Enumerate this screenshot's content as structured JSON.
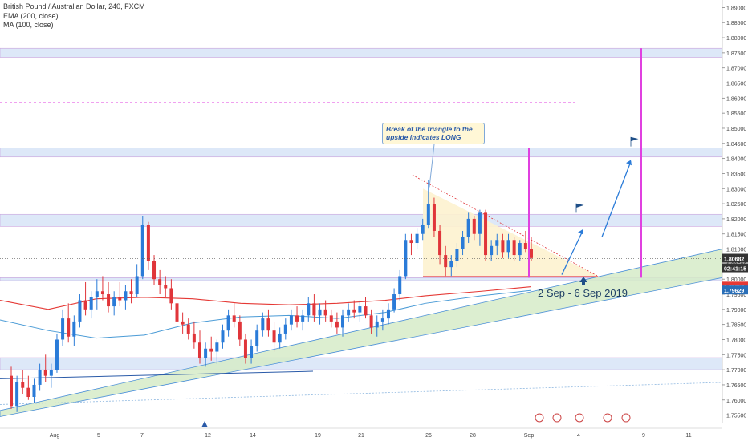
{
  "header": {
    "symbol_line": "British Pound / Australian Dollar, 240, FXCM",
    "ema_label": "EMA (200, close)",
    "ma_label": "MA (100, close)"
  },
  "annotations": {
    "callout_text_1": "Break of the triangle to the",
    "callout_text_2": "upside indicates LONG",
    "date_range_label": "2 Sep - 6 Sep 2019"
  },
  "price_tags": {
    "last_price": "1.80682",
    "countdown": "02:41:15",
    "ema_value": "1.79757",
    "ma_value": "1.79629"
  },
  "colors": {
    "up_candle": "#2a7bd8",
    "down_candle": "#e0353a",
    "ema_line": "#e53935",
    "ma_line": "#4a9bd6",
    "zone_fill": "#dde8f8",
    "trend_fill": "#d6ebc8",
    "triangle_fill": "#fdf2cf",
    "magenta": "#e040e0",
    "price_tag_dark": "#333333",
    "ema_tag": "#e53935",
    "ma_tag": "#2a6fb8"
  },
  "chart_data": {
    "type": "candlestick",
    "title": "British Pound / Australian Dollar, 240, FXCM",
    "ylim": [
      1.7525,
      1.8925
    ],
    "y_ticks": [
      "1.75500",
      "1.76000",
      "1.76500",
      "1.77000",
      "1.77500",
      "1.78000",
      "1.78500",
      "1.79000",
      "1.79500",
      "1.80000",
      "1.80500",
      "1.81000",
      "1.81500",
      "1.82000",
      "1.82500",
      "1.83000",
      "1.83500",
      "1.84000",
      "1.84500",
      "1.85000",
      "1.85500",
      "1.86000",
      "1.86500",
      "1.87000",
      "1.87500",
      "1.88000",
      "1.88500",
      "1.89000"
    ],
    "x_ticks": [
      "Aug",
      "5",
      "7",
      "12",
      "14",
      "19",
      "21",
      "26",
      "28",
      "Sep",
      "4",
      "9",
      "11"
    ],
    "grid": false,
    "candles_approx": [
      [
        1.768,
        1.771,
        1.757,
        1.758
      ],
      [
        1.758,
        1.768,
        1.756,
        1.766
      ],
      [
        1.766,
        1.77,
        1.762,
        1.764
      ],
      [
        1.764,
        1.768,
        1.76,
        1.761
      ],
      [
        1.761,
        1.767,
        1.759,
        1.765
      ],
      [
        1.765,
        1.772,
        1.763,
        1.77
      ],
      [
        1.77,
        1.775,
        1.766,
        1.768
      ],
      [
        1.768,
        1.772,
        1.764,
        1.77
      ],
      [
        1.77,
        1.782,
        1.769,
        1.78
      ],
      [
        1.78,
        1.79,
        1.778,
        1.787
      ],
      [
        1.787,
        1.792,
        1.779,
        1.781
      ],
      [
        1.781,
        1.788,
        1.778,
        1.786
      ],
      [
        1.786,
        1.795,
        1.784,
        1.793
      ],
      [
        1.793,
        1.799,
        1.788,
        1.79
      ],
      [
        1.79,
        1.796,
        1.787,
        1.794
      ],
      [
        1.794,
        1.8,
        1.79,
        1.796
      ],
      [
        1.796,
        1.801,
        1.793,
        1.795
      ],
      [
        1.795,
        1.799,
        1.789,
        1.791
      ],
      [
        1.791,
        1.796,
        1.788,
        1.794
      ],
      [
        1.794,
        1.799,
        1.791,
        1.793
      ],
      [
        1.793,
        1.798,
        1.79,
        1.796
      ],
      [
        1.796,
        1.8,
        1.792,
        1.795
      ],
      [
        1.795,
        1.805,
        1.794,
        1.801
      ],
      [
        1.801,
        1.821,
        1.8,
        1.818
      ],
      [
        1.818,
        1.819,
        1.803,
        1.806
      ],
      [
        1.806,
        1.808,
        1.798,
        1.8
      ],
      [
        1.8,
        1.803,
        1.795,
        1.798
      ],
      [
        1.798,
        1.801,
        1.794,
        1.797
      ],
      [
        1.797,
        1.8,
        1.79,
        1.792
      ],
      [
        1.792,
        1.794,
        1.784,
        1.786
      ],
      [
        1.786,
        1.789,
        1.782,
        1.785
      ],
      [
        1.785,
        1.787,
        1.78,
        1.782
      ],
      [
        1.782,
        1.786,
        1.777,
        1.779
      ],
      [
        1.779,
        1.783,
        1.772,
        1.774
      ],
      [
        1.774,
        1.779,
        1.771,
        1.777
      ],
      [
        1.777,
        1.781,
        1.773,
        1.776
      ],
      [
        1.776,
        1.78,
        1.772,
        1.779
      ],
      [
        1.779,
        1.785,
        1.777,
        1.783
      ],
      [
        1.783,
        1.79,
        1.781,
        1.788
      ],
      [
        1.788,
        1.792,
        1.784,
        1.786
      ],
      [
        1.786,
        1.788,
        1.778,
        1.78
      ],
      [
        1.78,
        1.782,
        1.772,
        1.774
      ],
      [
        1.774,
        1.78,
        1.772,
        1.778
      ],
      [
        1.778,
        1.785,
        1.776,
        1.783
      ],
      [
        1.783,
        1.789,
        1.781,
        1.787
      ],
      [
        1.787,
        1.79,
        1.781,
        1.783
      ],
      [
        1.783,
        1.786,
        1.776,
        1.779
      ],
      [
        1.779,
        1.784,
        1.777,
        1.782
      ],
      [
        1.782,
        1.787,
        1.78,
        1.785
      ],
      [
        1.785,
        1.79,
        1.783,
        1.788
      ],
      [
        1.788,
        1.791,
        1.784,
        1.786
      ],
      [
        1.786,
        1.79,
        1.783,
        1.788
      ],
      [
        1.788,
        1.794,
        1.786,
        1.792
      ],
      [
        1.792,
        1.795,
        1.786,
        1.788
      ],
      [
        1.788,
        1.792,
        1.785,
        1.79
      ],
      [
        1.79,
        1.793,
        1.786,
        1.788
      ],
      [
        1.788,
        1.79,
        1.784,
        1.786
      ],
      [
        1.786,
        1.789,
        1.782,
        1.784
      ],
      [
        1.784,
        1.79,
        1.781,
        1.788
      ],
      [
        1.788,
        1.792,
        1.786,
        1.79
      ],
      [
        1.79,
        1.793,
        1.787,
        1.789
      ],
      [
        1.789,
        1.793,
        1.786,
        1.791
      ],
      [
        1.791,
        1.794,
        1.787,
        1.788
      ],
      [
        1.788,
        1.79,
        1.782,
        1.784
      ],
      [
        1.784,
        1.788,
        1.781,
        1.786
      ],
      [
        1.786,
        1.79,
        1.783,
        1.787
      ],
      [
        1.787,
        1.792,
        1.785,
        1.79
      ],
      [
        1.79,
        1.797,
        1.789,
        1.795
      ],
      [
        1.795,
        1.803,
        1.793,
        1.801
      ],
      [
        1.801,
        1.815,
        1.8,
        1.813
      ],
      [
        1.813,
        1.815,
        1.808,
        1.812
      ],
      [
        1.812,
        1.817,
        1.81,
        1.815
      ],
      [
        1.815,
        1.82,
        1.813,
        1.818
      ],
      [
        1.818,
        1.833,
        1.817,
        1.825
      ],
      [
        1.825,
        1.827,
        1.814,
        1.816
      ],
      [
        1.816,
        1.818,
        1.805,
        1.808
      ],
      [
        1.808,
        1.811,
        1.801,
        1.804
      ],
      [
        1.804,
        1.808,
        1.801,
        1.806
      ],
      [
        1.806,
        1.812,
        1.804,
        1.81
      ],
      [
        1.81,
        1.816,
        1.808,
        1.814
      ],
      [
        1.814,
        1.822,
        1.812,
        1.82
      ],
      [
        1.82,
        1.821,
        1.813,
        1.815
      ],
      [
        1.815,
        1.823,
        1.811,
        1.822
      ],
      [
        1.822,
        1.823,
        1.806,
        1.808
      ],
      [
        1.808,
        1.813,
        1.806,
        1.811
      ],
      [
        1.811,
        1.815,
        1.808,
        1.813
      ],
      [
        1.813,
        1.815,
        1.807,
        1.809
      ],
      [
        1.809,
        1.815,
        1.807,
        1.813
      ],
      [
        1.813,
        1.814,
        1.806,
        1.808
      ],
      [
        1.808,
        1.813,
        1.806,
        1.812
      ],
      [
        1.812,
        1.816,
        1.809,
        1.81
      ],
      [
        1.81,
        1.814,
        1.806,
        1.807
      ]
    ]
  }
}
